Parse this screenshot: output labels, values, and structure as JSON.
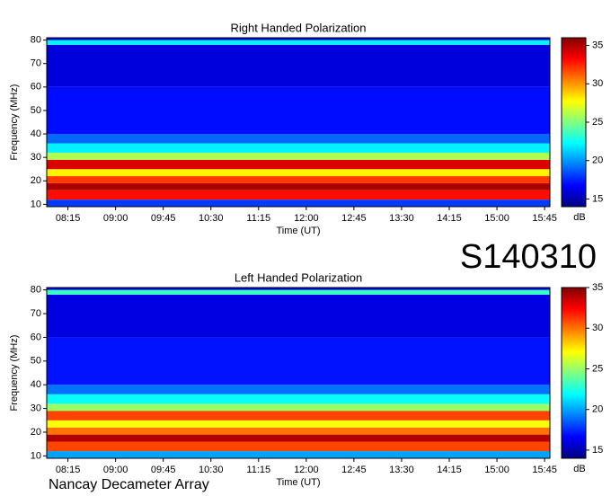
{
  "page_label": "S140310",
  "footer": "Nancay Decameter Array",
  "chart_data": [
    {
      "type": "heatmap",
      "title": "Right Handed Polarization",
      "xlabel": "Time (UT)",
      "ylabel": "Frequency (MHz)",
      "xlim": [
        "07:55",
        "15:50"
      ],
      "xticks": [
        "08:15",
        "09:00",
        "09:45",
        "10:30",
        "11:15",
        "12:00",
        "12:45",
        "13:30",
        "14:15",
        "15:00",
        "15:45"
      ],
      "ylim": [
        9,
        81
      ],
      "yticks": [
        10,
        20,
        30,
        40,
        50,
        60,
        70,
        80
      ],
      "y_bins": [
        9,
        12,
        16,
        19,
        22,
        25,
        29,
        32,
        36,
        40,
        60,
        78,
        80,
        81
      ],
      "values": [
        18,
        33,
        35,
        32,
        28,
        34,
        26,
        22,
        19,
        17,
        16,
        22,
        16
      ],
      "zlim": [
        14,
        36
      ],
      "zticks": [
        15,
        20,
        25,
        30,
        35
      ],
      "zlabel": "dB",
      "colormap": "jet"
    },
    {
      "type": "heatmap",
      "title": "Left Handed Polarization",
      "xlabel": "Time (UT)",
      "ylabel": "Frequency (MHz)",
      "xlim": [
        "07:55",
        "15:50"
      ],
      "xticks": [
        "08:15",
        "09:00",
        "09:45",
        "10:30",
        "11:15",
        "12:00",
        "12:45",
        "13:30",
        "14:15",
        "15:00",
        "15:45"
      ],
      "ylim": [
        9,
        81
      ],
      "yticks": [
        10,
        20,
        30,
        40,
        50,
        60,
        70,
        80
      ],
      "y_bins": [
        9,
        12,
        16,
        19,
        22,
        25,
        29,
        32,
        36,
        40,
        60,
        78,
        80,
        81
      ],
      "values": [
        20,
        31,
        34,
        30,
        27,
        31,
        25,
        22,
        19,
        17,
        16,
        23,
        16
      ],
      "zlim": [
        14,
        35
      ],
      "zticks": [
        15,
        20,
        25,
        30,
        35
      ],
      "zlabel": "dB",
      "colormap": "jet"
    }
  ]
}
